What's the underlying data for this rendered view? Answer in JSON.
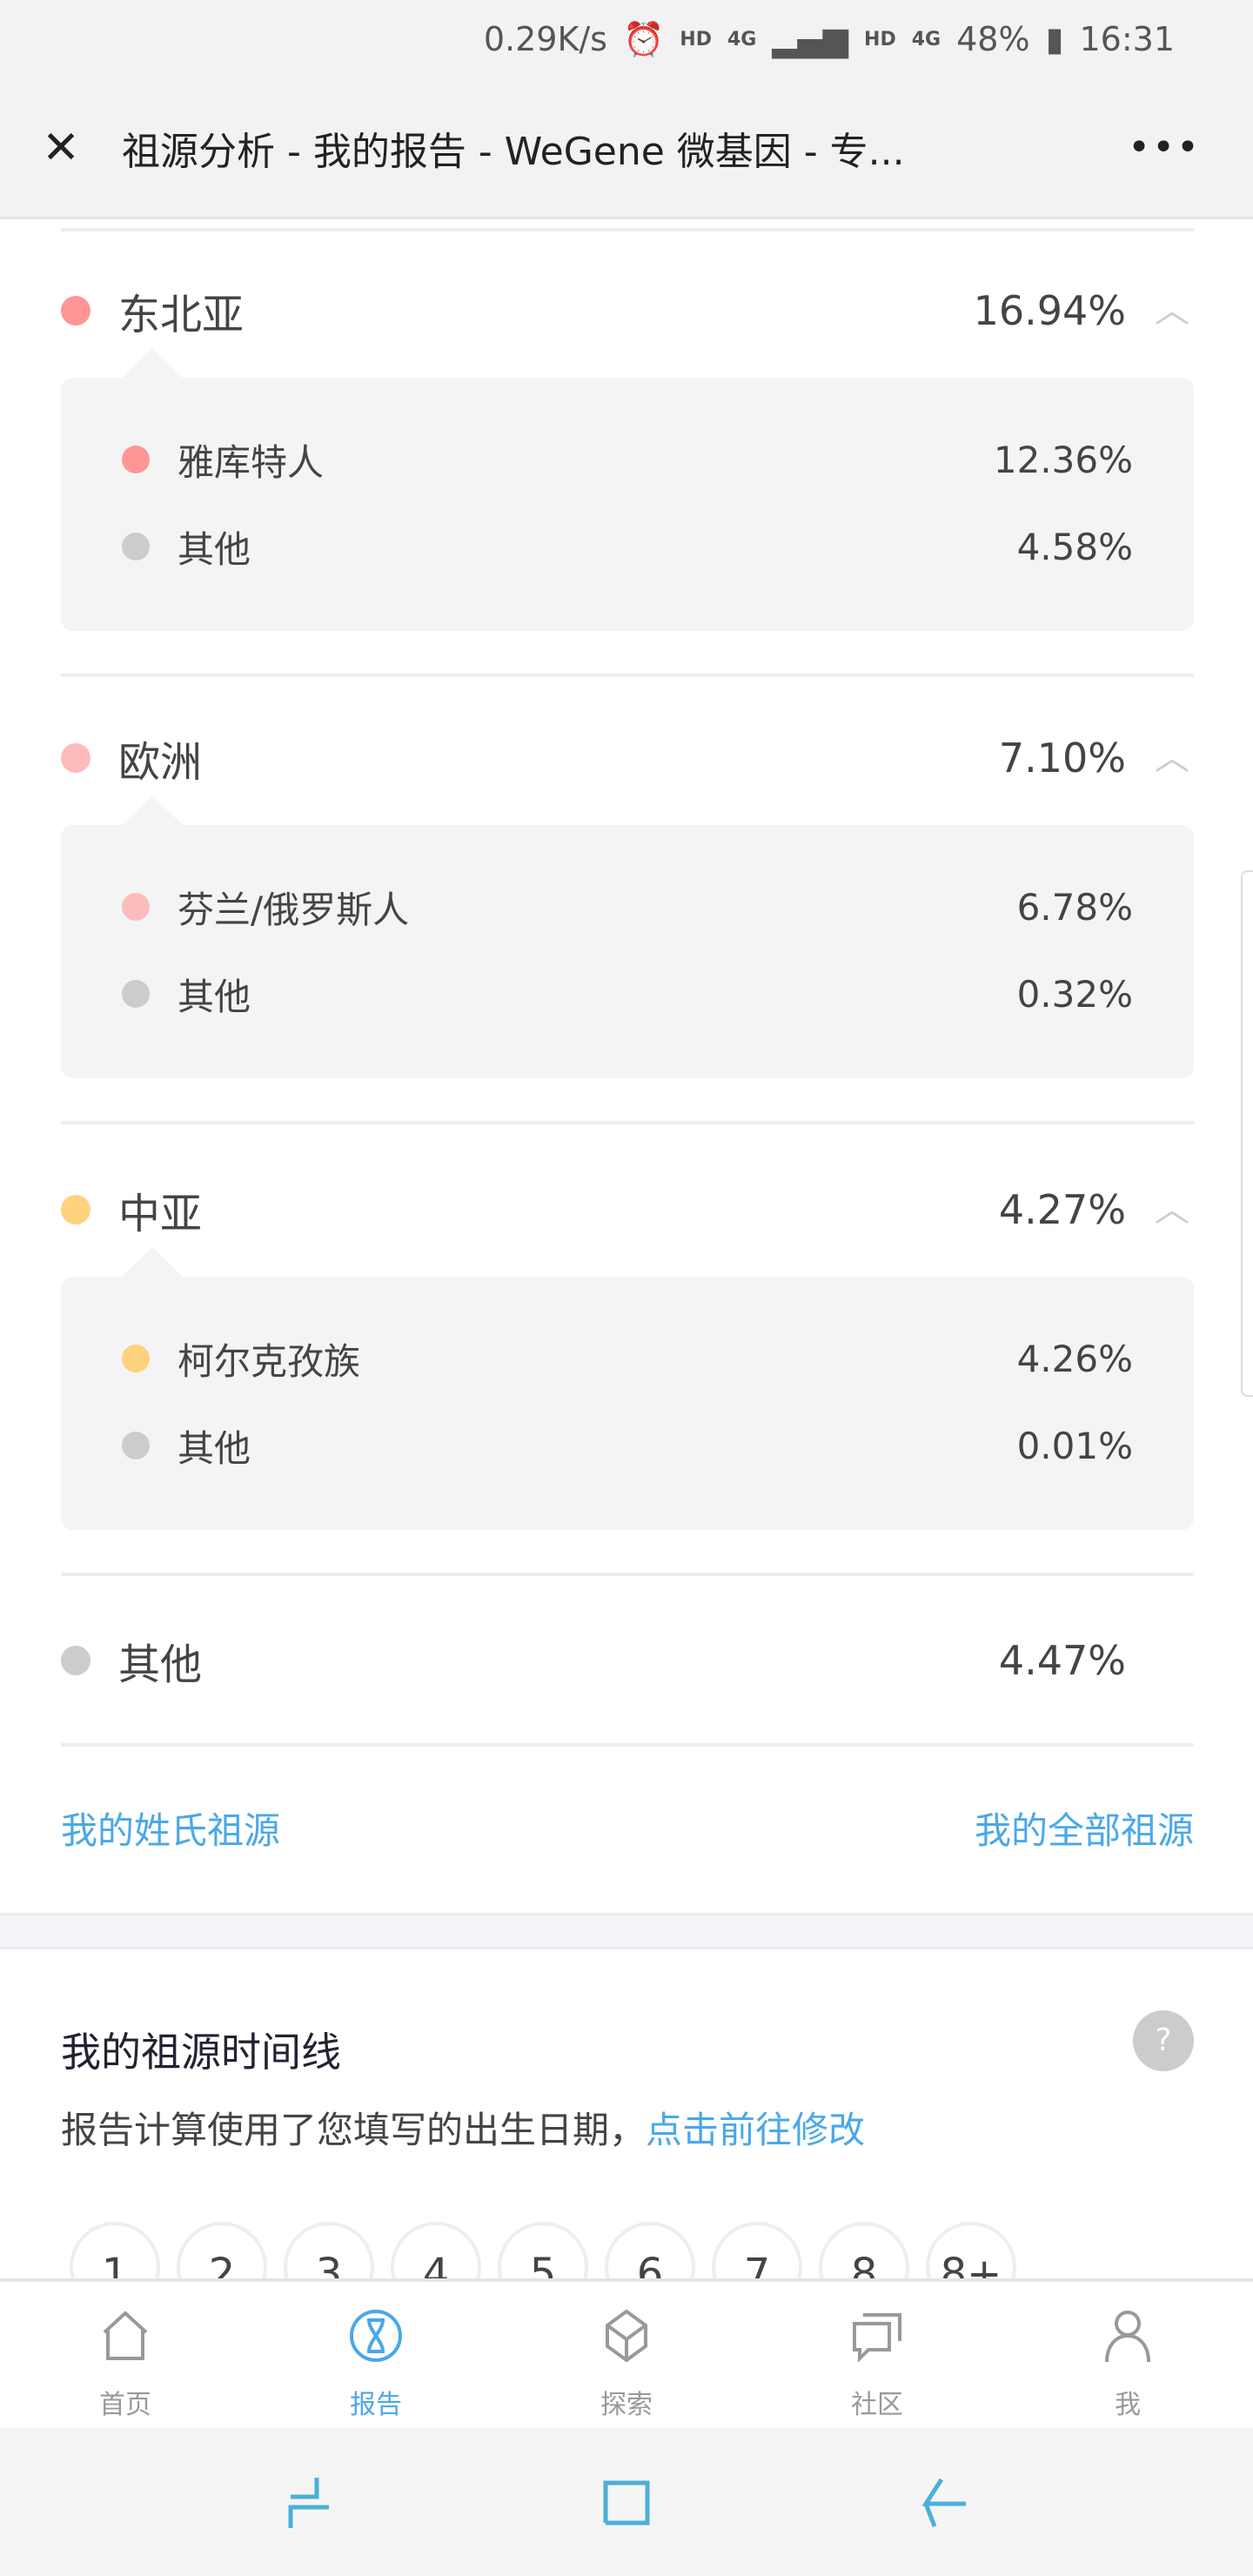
{
  "status_bar": {
    "speed": "0.29K/s",
    "hd1": "HD",
    "net1": "4G",
    "hd2": "HD",
    "net2": "4G",
    "battery": "48%",
    "time": "16:31"
  },
  "header": {
    "title": "祖源分析 - 我的报告 - WeGene 微基因 - 专...",
    "close_icon": "close-icon",
    "more_icon": "more-icon"
  },
  "groups": [
    {
      "name": "东北亚",
      "pct": "16.94%",
      "color": "#fe9696",
      "expanded": true,
      "items": [
        {
          "name": "雅库特人",
          "pct": "12.36%",
          "color": "#fe9696"
        },
        {
          "name": "其他",
          "pct": "4.58%",
          "color": "#cccccc"
        }
      ]
    },
    {
      "name": "欧洲",
      "pct": "7.10%",
      "color": "#fdbcbc",
      "expanded": true,
      "items": [
        {
          "name": "芬兰/俄罗斯人",
          "pct": "6.78%",
          "color": "#fdbcbc"
        },
        {
          "name": "其他",
          "pct": "0.32%",
          "color": "#cccccc"
        }
      ]
    },
    {
      "name": "中亚",
      "pct": "4.27%",
      "color": "#ffd27f",
      "expanded": true,
      "items": [
        {
          "name": "柯尔克孜族",
          "pct": "4.26%",
          "color": "#ffd27f"
        },
        {
          "name": "其他",
          "pct": "0.01%",
          "color": "#cccccc"
        }
      ]
    },
    {
      "name": "其他",
      "pct": "4.47%",
      "color": "#cccccc",
      "expanded": false,
      "items": []
    }
  ],
  "links": {
    "surname": "我的姓氏祖源",
    "all": "我的全部祖源"
  },
  "timeline": {
    "title": "我的祖源时间线",
    "help": "?",
    "subtitle": "报告计算使用了您填写的出生日期，",
    "subtitle_link": "点击前往修改",
    "generations": [
      "1",
      "2",
      "3",
      "4",
      "5",
      "6",
      "7",
      "8",
      "8+"
    ]
  },
  "tabbar": [
    {
      "label": "首页",
      "icon": "home-icon"
    },
    {
      "label": "报告",
      "icon": "dna-icon",
      "active": true
    },
    {
      "label": "探索",
      "icon": "cube-icon"
    },
    {
      "label": "社区",
      "icon": "chat-icon"
    },
    {
      "label": "我",
      "icon": "user-icon"
    }
  ],
  "accent": "#4aa8e8"
}
